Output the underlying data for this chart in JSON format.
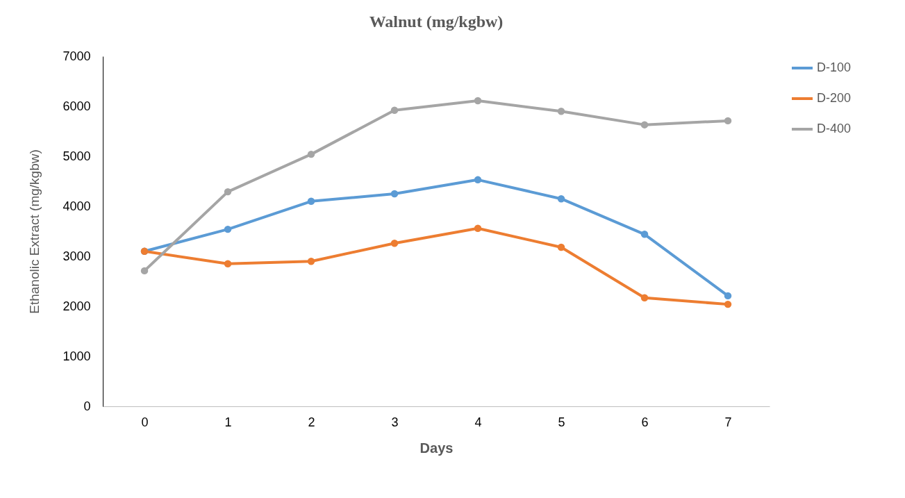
{
  "chart_data": {
    "type": "line",
    "title": "Walnut (mg/kgbw)",
    "xlabel": "Days",
    "ylabel": "Ethanolic Extract (mg/kgbw)",
    "categories": [
      "0",
      "1",
      "2",
      "3",
      "4",
      "5",
      "6",
      "7"
    ],
    "series": [
      {
        "name": "D-100",
        "color": "#5b9bd5",
        "values": [
          3100,
          3540,
          4100,
          4250,
          4530,
          4150,
          3440,
          2210
        ]
      },
      {
        "name": "D-200",
        "color": "#ed7d31",
        "values": [
          3100,
          2850,
          2900,
          3260,
          3560,
          3180,
          2170,
          2040
        ]
      },
      {
        "name": "D-400",
        "color": "#a5a5a5",
        "values": [
          2710,
          4290,
          5040,
          5920,
          6110,
          5900,
          5630,
          5710
        ]
      }
    ],
    "ylim": [
      0,
      7000
    ],
    "yticks": [
      0,
      1000,
      2000,
      3000,
      4000,
      5000,
      6000,
      7000
    ],
    "grid": false,
    "legend": "right",
    "marker": "circle",
    "line_style": "solid"
  }
}
